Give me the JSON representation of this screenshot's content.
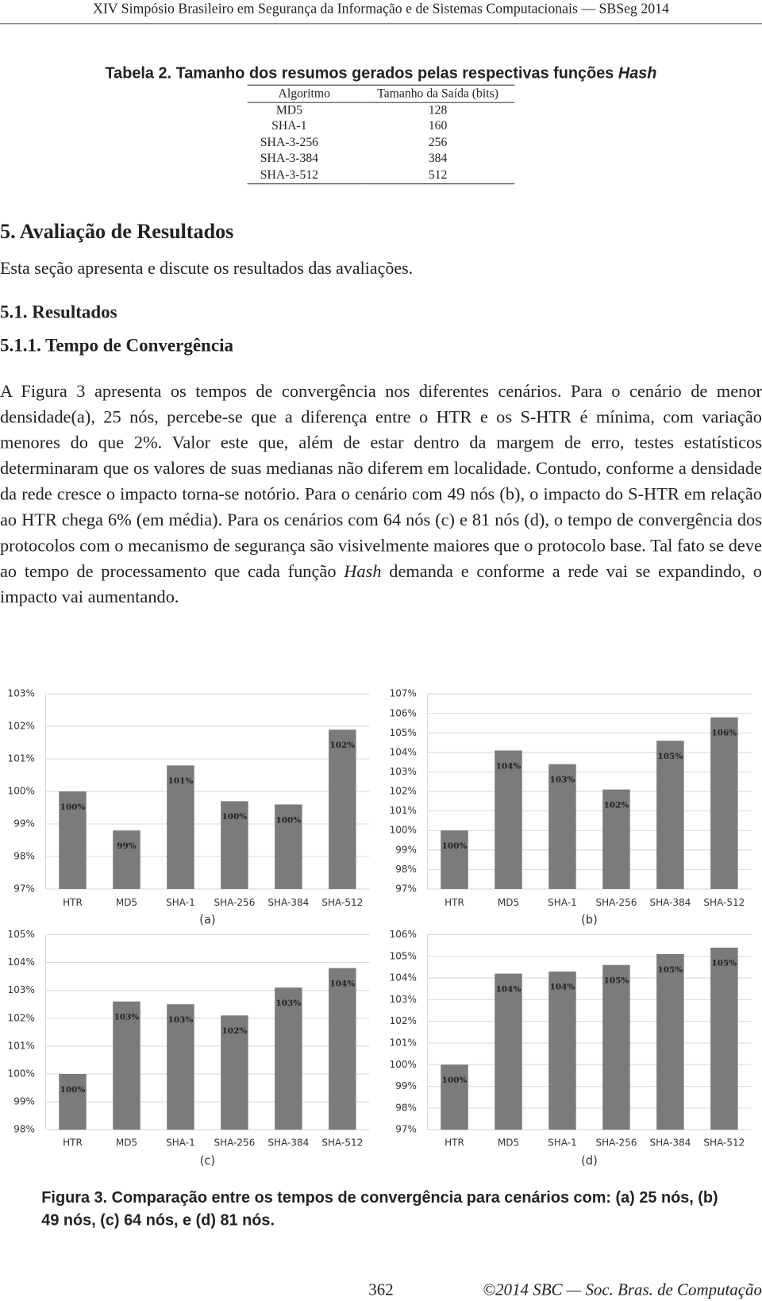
{
  "header": {
    "text": "XIV Simpósio Brasileiro em Segurança da Informação e de Sistemas Computacionais — SBSeg 2014"
  },
  "table": {
    "caption": {
      "label": "Tabela 2.",
      "text": "Tamanho dos resumos gerados pelas respectivas funções",
      "emph": "Hash"
    },
    "columns": [
      "Algoritmo",
      "Tamanho da Saída (bits)"
    ],
    "rows": [
      [
        "MD5",
        128
      ],
      [
        "SHA-1",
        160
      ],
      [
        "SHA-3-256",
        256
      ],
      [
        "SHA-3-384",
        384
      ],
      [
        "SHA-3-512",
        512
      ]
    ]
  },
  "section": {
    "title": "5. Avaliação de Resultados",
    "intro": "Esta seção apresenta e discute os resultados das avaliações."
  },
  "subsection": {
    "title": "5.1. Resultados"
  },
  "subsubsection": {
    "title": "5.1.1. Tempo de Convergência"
  },
  "paragraph": [
    "A Figura 3 apresenta os tempos de convergência nos diferentes cenários. Para o cenário de menor densidade(a), 25 nós, percebe-se que a diferença entre o HTR e os S-HTR é mínima, com variação menores do que 2%. Valor este que, além de estar dentro da margem de erro, testes estatísticos determinaram que os valores de suas medianas não diferem em localidade. Contudo, conforme a densidade da rede cresce o impacto torna-se notório. Para o cenário com 49 nós (b), o impacto do S-HTR em relação ao HTR chega 6% (em média). Para os cenários com 64 nós (c) e 81 nós (d), o tempo de convergência dos protocolos com o mecanismo de segurança são visivelmente maiores que o protocolo base. Tal fato se deve ao tempo de processamento que cada função",
    "Hash",
    "demanda e conforme a rede vai se expandindo, o impacto vai aumentando."
  ],
  "chart_data": [
    {
      "type": "bar",
      "caption": "(a)",
      "color": "#7b7b7b",
      "grid": true,
      "categories": [
        "HTR",
        "MD5",
        "SHA-1",
        "SHA-256",
        "SHA-384",
        "SHA-512"
      ],
      "values": [
        100.0,
        98.8,
        100.8,
        99.7,
        99.6,
        101.9
      ],
      "value_labels": [
        "100%",
        "99%",
        "101%",
        "100%",
        "100%",
        "102%"
      ],
      "ylim": [
        97,
        103
      ],
      "yticks": [
        {
          "value": 97,
          "label": "97%"
        },
        {
          "value": 98,
          "label": "98%"
        },
        {
          "value": 99,
          "label": "99%"
        },
        {
          "value": 100,
          "label": "100%"
        },
        {
          "value": 101,
          "label": "101%"
        },
        {
          "value": 102,
          "label": "102%"
        },
        {
          "value": 103,
          "label": "103%"
        }
      ]
    },
    {
      "type": "bar",
      "caption": "(b)",
      "color": "#7b7b7b",
      "grid": true,
      "categories": [
        "HTR",
        "MD5",
        "SHA-1",
        "SHA-256",
        "SHA-384",
        "SHA-512"
      ],
      "values": [
        100.0,
        104.1,
        103.4,
        102.1,
        104.6,
        105.8
      ],
      "value_labels": [
        "100%",
        "104%",
        "103%",
        "102%",
        "105%",
        "106%"
      ],
      "ylim": [
        97,
        107
      ],
      "yticks": [
        {
          "value": 97,
          "label": "97%"
        },
        {
          "value": 98,
          "label": "98%"
        },
        {
          "value": 99,
          "label": "99%"
        },
        {
          "value": 100,
          "label": "100%"
        },
        {
          "value": 101,
          "label": "101%"
        },
        {
          "value": 102,
          "label": "102%"
        },
        {
          "value": 103,
          "label": "103%"
        },
        {
          "value": 104,
          "label": "104%"
        },
        {
          "value": 105,
          "label": "105%"
        },
        {
          "value": 106,
          "label": "106%"
        },
        {
          "value": 107,
          "label": "107%"
        }
      ]
    },
    {
      "type": "bar",
      "caption": "(c)",
      "color": "#7b7b7b",
      "grid": true,
      "categories": [
        "HTR",
        "MD5",
        "SHA-1",
        "SHA-256",
        "SHA-384",
        "SHA-512"
      ],
      "values": [
        100.0,
        102.6,
        102.5,
        102.1,
        103.1,
        103.8
      ],
      "value_labels": [
        "100%",
        "103%",
        "103%",
        "102%",
        "103%",
        "104%"
      ],
      "ylim": [
        98,
        105
      ],
      "yticks": [
        {
          "value": 98,
          "label": "98%"
        },
        {
          "value": 99,
          "label": "99%"
        },
        {
          "value": 100,
          "label": "100%"
        },
        {
          "value": 101,
          "label": "101%"
        },
        {
          "value": 102,
          "label": "102%"
        },
        {
          "value": 103,
          "label": "103%"
        },
        {
          "value": 104,
          "label": "104%"
        },
        {
          "value": 105,
          "label": "105%"
        }
      ]
    },
    {
      "type": "bar",
      "caption": "(d)",
      "color": "#7b7b7b",
      "grid": true,
      "categories": [
        "HTR",
        "MD5",
        "SHA-1",
        "SHA-256",
        "SHA-384",
        "SHA-512"
      ],
      "values": [
        100.0,
        104.2,
        104.3,
        104.6,
        105.1,
        105.4
      ],
      "value_labels": [
        "100%",
        "104%",
        "104%",
        "105%",
        "105%",
        "105%"
      ],
      "ylim": [
        97,
        106
      ],
      "yticks": [
        {
          "value": 97,
          "label": "97%"
        },
        {
          "value": 98,
          "label": "98%"
        },
        {
          "value": 99,
          "label": "99%"
        },
        {
          "value": 100,
          "label": "100%"
        },
        {
          "value": 101,
          "label": "101%"
        },
        {
          "value": 102,
          "label": "102%"
        },
        {
          "value": 103,
          "label": "103%"
        },
        {
          "value": 104,
          "label": "104%"
        },
        {
          "value": 105,
          "label": "105%"
        },
        {
          "value": 106,
          "label": "106%"
        }
      ]
    }
  ],
  "figure": {
    "label": "Figura 3.",
    "caption": "Comparação entre os tempos de convergência para cenários com: (a) 25 nós, (b) 49 nós, (c) 64 nós, e (d) 81 nós."
  },
  "footer": {
    "page": "362",
    "copyright": "©2014 SBC — Soc. Bras. de Computação"
  }
}
